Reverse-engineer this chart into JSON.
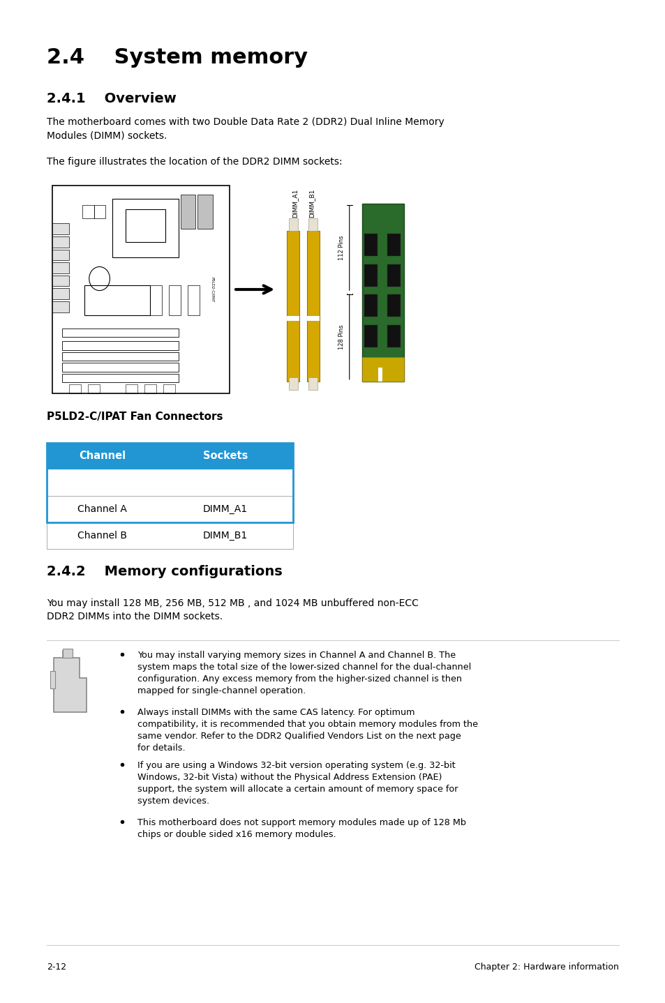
{
  "title_main": "2.4    System memory",
  "title_sub1": "2.4.1    Overview",
  "title_sub2": "2.4.2    Memory configurations",
  "para1": "The motherboard comes with two Double Data Rate 2 (DDR2) Dual Inline Memory\nModules (DIMM) sockets.",
  "para2": "The figure illustrates the location of the DDR2 DIMM sockets:",
  "caption": "P5LD2-C/IPAT Fan Connectors",
  "table_header": [
    "Channel",
    "Sockets"
  ],
  "table_rows": [
    [
      "Channel A",
      "DIMM_A1"
    ],
    [
      "Channel B",
      "DIMM_B1"
    ]
  ],
  "table_header_bg": "#2196d3",
  "table_header_color": "#ffffff",
  "para3": "You may install 128 MB, 256 MB, 512 MB , and 1024 MB unbuffered non-ECC\nDDR2 DIMMs into the DIMM sockets.",
  "bullet1": "You may install varying memory sizes in Channel A and Channel B. The\nsystem maps the total size of the lower-sized channel for the dual-channel\nconfiguration. Any excess memory from the higher-sized channel is then\nmapped for single-channel operation.",
  "bullet2": "Always install DIMMs with the same CAS latency. For optimum\ncompatibility, it is recommended that you obtain memory modules from the\nsame vendor. Refer to the DDR2 Qualified Vendors List on the next page\nfor details.",
  "bullet3": "If you are using a Windows 32-bit version operating system (e.g. 32-bit\nWindows, 32-bit Vista) without the Physical Address Extension (PAE)\nsupport, the system will allocate a certain amount of memory space for\nsystem devices.",
  "bullet4": "This motherboard does not support memory modules made up of 128 Mb\nchips or double sided x16 memory modules.",
  "footer_left": "2-12",
  "footer_right": "Chapter 2: Hardware information",
  "bg_color": "#ffffff",
  "text_color": "#000000",
  "gray_line_color": "#cccccc"
}
